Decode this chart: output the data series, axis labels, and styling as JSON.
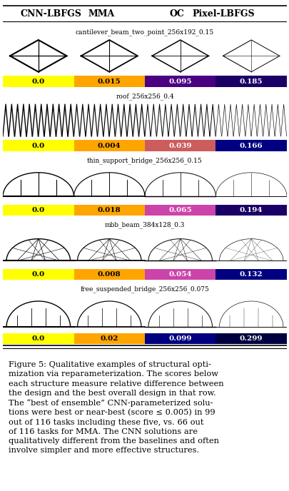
{
  "title": "Figure 5: Qualitative examples of structural opti-\nmization via reparameterization. The scores below\neach structure measure relative difference between\nthe design and the best overall design in that row.\nThe “best of ensemble” CNN-parameterized solu-\ntions were best or near-best (score ≤ 0.005) in 99\nout of 116 tasks including these five, vs. 66 out\nof 116 tasks for MMA. The CNN solutions are\nqualitatively different from the baselines and often\ninvolve simpler and more effective structures.",
  "col_headers": [
    "CNN-LBFGS",
    "MMA",
    "OC",
    "Pixel-LBFGS"
  ],
  "rows": [
    {
      "name": "cantilever_beam_two_point_256x192_0.15",
      "scores": [
        0.0,
        0.015,
        0.095,
        0.185
      ],
      "colors": [
        "#ffff00",
        "#ffa500",
        "#4b0082",
        "#1a0066"
      ]
    },
    {
      "name": "roof_256x256_0.4",
      "scores": [
        0.0,
        0.004,
        0.039,
        0.166
      ],
      "colors": [
        "#ffff00",
        "#ffa500",
        "#cd5c5c",
        "#000080"
      ]
    },
    {
      "name": "thin_support_bridge_256x256_0.15",
      "scores": [
        0.0,
        0.018,
        0.065,
        0.194
      ],
      "colors": [
        "#ffff00",
        "#ffa500",
        "#cc44aa",
        "#1a0066"
      ]
    },
    {
      "name": "mbb_beam_384x128_0.3",
      "scores": [
        0.0,
        0.008,
        0.054,
        0.132
      ],
      "colors": [
        "#ffff00",
        "#ffa500",
        "#cc44aa",
        "#000080"
      ]
    },
    {
      "name": "free_suspended_bridge_256x256_0.075",
      "scores": [
        0.0,
        0.02,
        0.099,
        0.299
      ],
      "colors": [
        "#ffff00",
        "#ffa500",
        "#000080",
        "#000040"
      ]
    }
  ],
  "bg_color": "#ffffff",
  "figure_width": 4.06,
  "figure_height": 6.88
}
